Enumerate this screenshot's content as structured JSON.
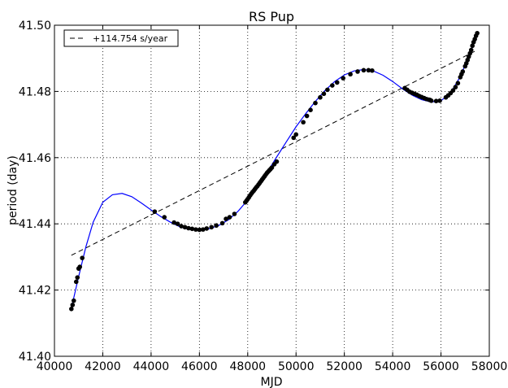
{
  "chart_data": {
    "type": "scatter",
    "title": "RS Pup",
    "xlabel": "MJD",
    "ylabel": "period (day)",
    "xlim": [
      40000,
      58000
    ],
    "ylim": [
      41.4,
      41.5
    ],
    "xticks": [
      40000,
      42000,
      44000,
      46000,
      48000,
      50000,
      52000,
      54000,
      56000,
      58000
    ],
    "yticks": [
      41.4,
      41.42,
      41.44,
      41.46,
      41.48,
      41.5
    ],
    "xtick_labels": [
      "40000",
      "42000",
      "44000",
      "46000",
      "48000",
      "50000",
      "52000",
      "54000",
      "56000",
      "58000"
    ],
    "ytick_labels": [
      "41.40",
      "41.42",
      "41.44",
      "41.46",
      "41.48",
      "41.50"
    ],
    "grid": true,
    "legend_position": "top-left",
    "series": [
      {
        "name": "+114.754 s/year",
        "kind": "dashed-line",
        "color": "#000000",
        "x": [
          40700,
          57500
        ],
        "y": [
          41.4305,
          41.4925
        ]
      },
      {
        "kind": "fit-curve",
        "color": "#0000ff",
        "x": [
          40700,
          41000,
          41300,
          41600,
          42000,
          42400,
          42800,
          43200,
          43600,
          44000,
          44400,
          44800,
          45200,
          45600,
          46000,
          46400,
          46800,
          47200,
          47600,
          48000,
          48400,
          48800,
          49200,
          49600,
          50000,
          50400,
          50800,
          51200,
          51600,
          52000,
          52400,
          52800,
          53200,
          53600,
          54000,
          54400,
          54800,
          55200,
          55600,
          56000,
          56400,
          56800,
          57200,
          57500
        ],
        "y": [
          41.4145,
          41.424,
          41.433,
          41.4405,
          41.4465,
          41.4488,
          41.4492,
          41.4482,
          41.4463,
          41.4442,
          41.4422,
          41.4405,
          41.4391,
          41.4383,
          41.4381,
          41.4385,
          41.4395,
          41.4412,
          41.4438,
          41.4472,
          41.4512,
          41.4555,
          41.4602,
          41.4648,
          41.4693,
          41.4733,
          41.477,
          41.4803,
          41.483,
          41.485,
          41.4862,
          41.4866,
          41.4862,
          41.4849,
          41.483,
          41.4808,
          41.4789,
          41.4775,
          41.4768,
          41.4772,
          41.4795,
          41.4845,
          41.4915,
          41.4975
        ]
      },
      {
        "kind": "data-points",
        "color": "#000000",
        "x": [
          40700,
          40750,
          40800,
          40900,
          40950,
          41000,
          41050,
          41150,
          44150,
          44550,
          44950,
          45100,
          45250,
          45400,
          45550,
          45700,
          45850,
          46000,
          46150,
          46300,
          46500,
          46700,
          46950,
          47100,
          47250,
          47450,
          47900,
          47950,
          48000,
          48050,
          48100,
          48150,
          48200,
          48250,
          48300,
          48350,
          48400,
          48450,
          48500,
          48550,
          48600,
          48650,
          48700,
          48750,
          48800,
          48850,
          48900,
          48950,
          49000,
          49100,
          49200,
          49900,
          50000,
          50300,
          50450,
          50600,
          50800,
          51000,
          51150,
          51300,
          51500,
          51700,
          51950,
          52250,
          52550,
          52800,
          53000,
          53150,
          54500,
          54600,
          54700,
          54800,
          54900,
          55000,
          55100,
          55200,
          55300,
          55400,
          55500,
          55550,
          55600,
          55800,
          55950,
          56200,
          56300,
          56400,
          56500,
          56600,
          56700,
          56800,
          56850,
          56900,
          57000,
          57050,
          57100,
          57150,
          57200,
          57250,
          57300,
          57350,
          57400,
          57450,
          57500
        ],
        "y": [
          41.4143,
          41.4155,
          41.4168,
          41.4225,
          41.4238,
          41.4265,
          41.427,
          41.4297,
          41.4437,
          41.442,
          41.4404,
          41.44,
          41.4393,
          41.439,
          41.4387,
          41.4385,
          41.4383,
          41.4382,
          41.4383,
          41.4386,
          41.439,
          41.4395,
          41.4402,
          41.4415,
          41.442,
          41.443,
          41.4465,
          41.447,
          41.4475,
          41.448,
          41.4486,
          41.4491,
          41.4496,
          41.45,
          41.4505,
          41.451,
          41.4514,
          41.4519,
          41.4524,
          41.4529,
          41.4534,
          41.4539,
          41.4544,
          41.4549,
          41.4554,
          41.4558,
          41.4562,
          41.4566,
          41.457,
          41.458,
          41.4588,
          41.466,
          41.467,
          41.4707,
          41.4726,
          41.4744,
          41.4765,
          41.4782,
          41.4793,
          41.4805,
          41.4818,
          41.4827,
          41.484,
          41.4852,
          41.486,
          41.4864,
          41.4864,
          41.4863,
          41.481,
          41.4805,
          41.4799,
          41.4796,
          41.4793,
          41.479,
          41.4786,
          41.4783,
          41.478,
          41.4777,
          41.4775,
          41.4774,
          41.4772,
          41.4771,
          41.4772,
          41.4782,
          41.4788,
          41.4795,
          41.4803,
          41.4813,
          41.4825,
          41.4843,
          41.4852,
          41.486,
          41.4876,
          41.4885,
          41.4895,
          41.4905,
          41.4915,
          41.4925,
          41.4938,
          41.4949,
          41.4958,
          41.4968,
          41.4976
        ]
      }
    ]
  }
}
